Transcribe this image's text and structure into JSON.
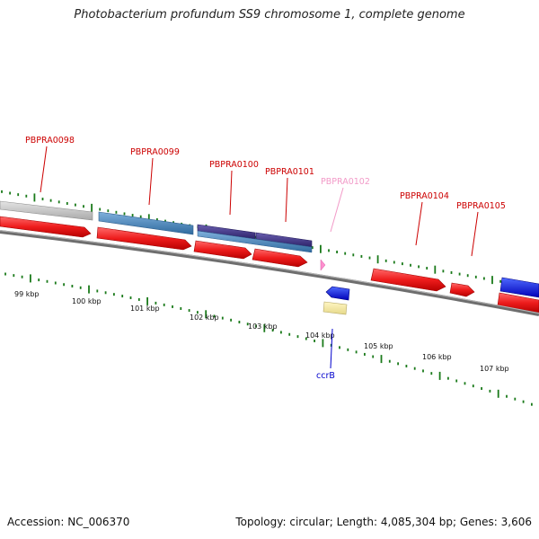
{
  "title": "Photobacterium profundum SS9 chromosome 1, complete genome",
  "accession": "Accession: NC_006370",
  "summary": "Topology: circular; Length: 4,085,304 bp; Genes: 3,606",
  "colors": {
    "cds": "#ee1c1c",
    "labelRed": "#cc0000",
    "labelPink": "#f29ac8",
    "labelBlue": "#0000cc",
    "tick": "#1a7a1a",
    "backbone": "#777777"
  },
  "ticks": [
    {
      "label": "99 kbp"
    },
    {
      "label": "100 kbp"
    },
    {
      "label": "101 kbp"
    },
    {
      "label": "102 kbp"
    },
    {
      "label": "103 kbp"
    },
    {
      "label": "104 kbp"
    },
    {
      "label": "105 kbp"
    },
    {
      "label": "106 kbp"
    },
    {
      "label": "107 kbp"
    }
  ],
  "geneLabels": [
    {
      "name": "PBPRA0098",
      "color": "#cc0000"
    },
    {
      "name": "PBPRA0099",
      "color": "#cc0000"
    },
    {
      "name": "PBPRA0100",
      "color": "#cc0000"
    },
    {
      "name": "PBPRA0101",
      "color": "#cc0000"
    },
    {
      "name": "PBPRA0102",
      "color": "#f29ac8"
    },
    {
      "name": "PBPRA0104",
      "color": "#cc0000"
    },
    {
      "name": "PBPRA0105",
      "color": "#cc0000"
    },
    {
      "name": "ccrB",
      "color": "#0000cc"
    }
  ]
}
